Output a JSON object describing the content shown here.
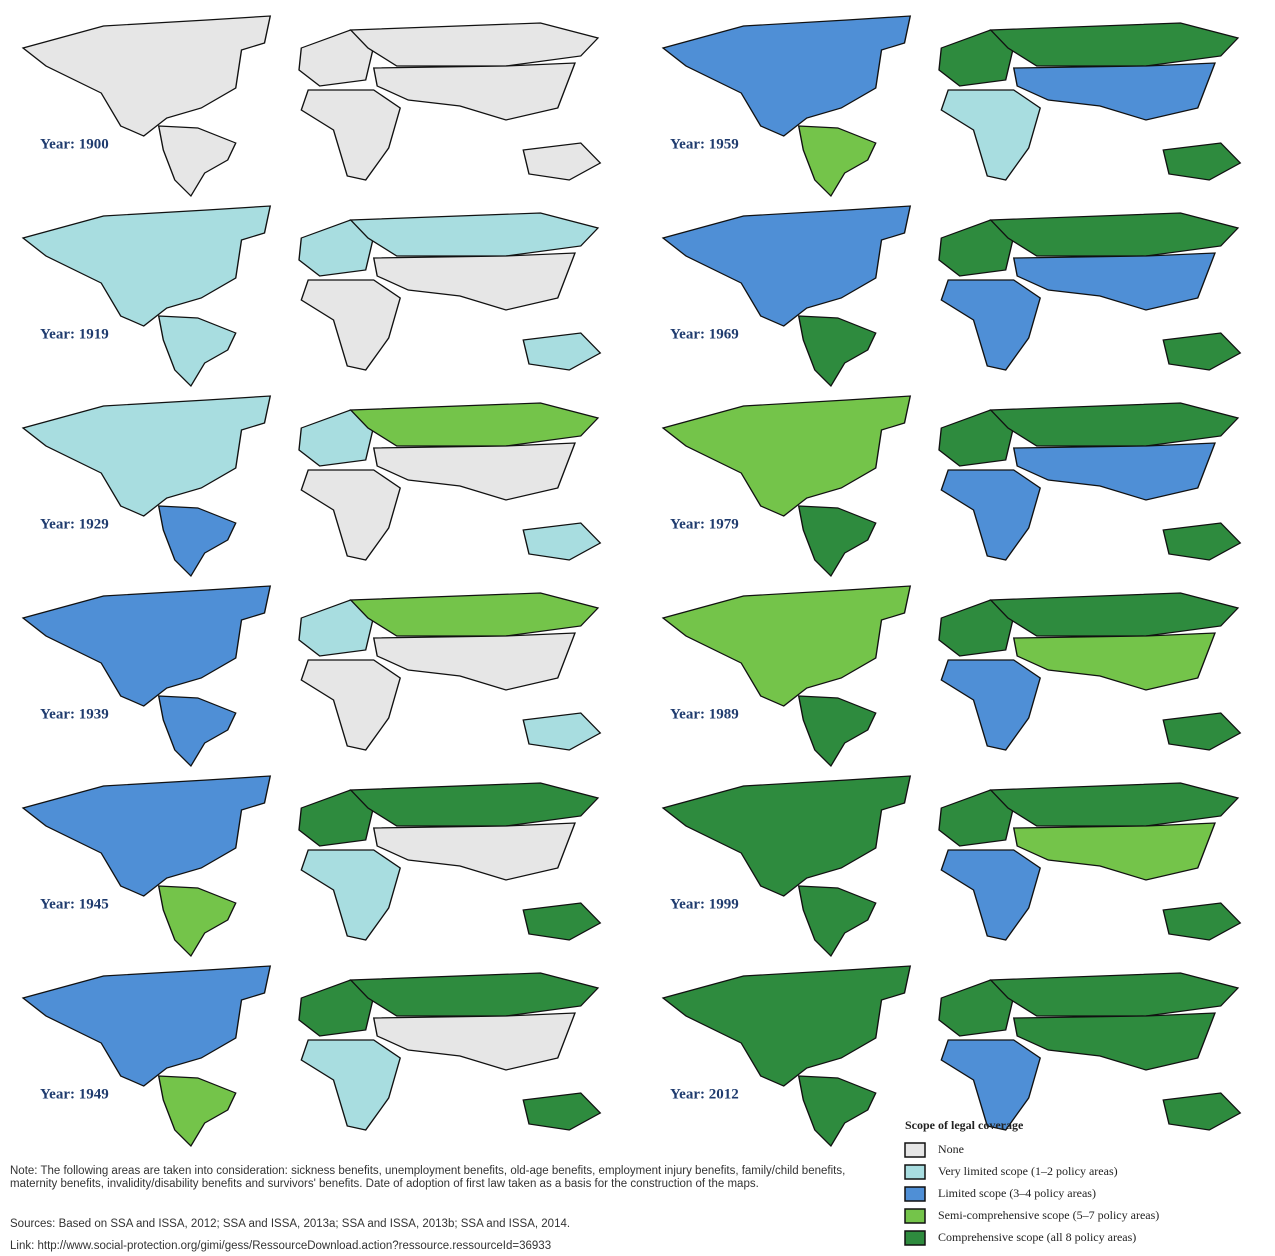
{
  "panels": [
    {
      "label": "Year: 1900",
      "colors": [
        "#e6e6e6",
        "#e6e6e6",
        "#e6e6e6",
        "#e6e6e6",
        "#e6e6e6",
        "#e6e6e6",
        "#e6e6e6"
      ]
    },
    {
      "label": "Year: 1919",
      "colors": [
        "#a8dde0",
        "#a8dde0",
        "#a8dde0",
        "#a8dde0",
        "#e6e6e6",
        "#e6e6e6",
        "#a8dde0"
      ]
    },
    {
      "label": "Year: 1929",
      "colors": [
        "#a8dde0",
        "#4f8fd6",
        "#a8dde0",
        "#74c44a",
        "#e6e6e6",
        "#e6e6e6",
        "#a8dde0"
      ]
    },
    {
      "label": "Year: 1939",
      "colors": [
        "#4f8fd6",
        "#4f8fd6",
        "#a8dde0",
        "#74c44a",
        "#e6e6e6",
        "#e6e6e6",
        "#a8dde0"
      ]
    },
    {
      "label": "Year: 1945",
      "colors": [
        "#4f8fd6",
        "#74c44a",
        "#2e8b3e",
        "#2e8b3e",
        "#e6e6e6",
        "#a8dde0",
        "#2e8b3e"
      ]
    },
    {
      "label": "Year: 1949",
      "colors": [
        "#4f8fd6",
        "#74c44a",
        "#2e8b3e",
        "#2e8b3e",
        "#e6e6e6",
        "#a8dde0",
        "#2e8b3e"
      ]
    },
    {
      "label": "Year: 1959",
      "colors": [
        "#4f8fd6",
        "#74c44a",
        "#2e8b3e",
        "#2e8b3e",
        "#4f8fd6",
        "#a8dde0",
        "#2e8b3e"
      ]
    },
    {
      "label": "Year: 1969",
      "colors": [
        "#4f8fd6",
        "#2e8b3e",
        "#2e8b3e",
        "#2e8b3e",
        "#4f8fd6",
        "#4f8fd6",
        "#2e8b3e"
      ]
    },
    {
      "label": "Year: 1979",
      "colors": [
        "#74c44a",
        "#2e8b3e",
        "#2e8b3e",
        "#2e8b3e",
        "#4f8fd6",
        "#4f8fd6",
        "#2e8b3e"
      ]
    },
    {
      "label": "Year: 1989",
      "colors": [
        "#74c44a",
        "#2e8b3e",
        "#2e8b3e",
        "#2e8b3e",
        "#74c44a",
        "#4f8fd6",
        "#2e8b3e"
      ]
    },
    {
      "label": "Year: 1999",
      "colors": [
        "#2e8b3e",
        "#2e8b3e",
        "#2e8b3e",
        "#2e8b3e",
        "#74c44a",
        "#4f8fd6",
        "#2e8b3e"
      ]
    },
    {
      "label": "Year: 2012",
      "colors": [
        "#2e8b3e",
        "#2e8b3e",
        "#2e8b3e",
        "#2e8b3e",
        "#2e8b3e",
        "#4f8fd6",
        "#2e8b3e"
      ]
    }
  ],
  "legend": {
    "title": "Scope of legal coverage",
    "items": [
      {
        "label": "None",
        "color": "#e6e6e6"
      },
      {
        "label": "Very limited scope (1–2 policy areas)",
        "color": "#a8dde0"
      },
      {
        "label": "Limited scope (3–4 policy areas)",
        "color": "#4f8fd6"
      },
      {
        "label": "Semi-comprehensive scope (5–7 policy areas)",
        "color": "#74c44a"
      },
      {
        "label": "Comprehensive scope (all 8 policy areas)",
        "color": "#2e8b3e"
      }
    ]
  },
  "notes": {
    "note": "Note: The following areas are taken into consideration: sickness benefits, unemployment benefits, old-age benefits, employment injury benefits, family/child benefits, maternity benefits, invalidity/disability benefits and survivors' benefits. Date of adoption of first law taken as a basis for the construction of the maps.",
    "sources": "Sources: Based on SSA and ISSA, 2012; SSA and ISSA, 2013a; SSA and ISSA, 2013b; SSA and ISSA, 2014.",
    "link": "Link: http://www.social-protection.org/gimi/gess/RessourceDownload.action?ressource.ressourceId=36933"
  }
}
